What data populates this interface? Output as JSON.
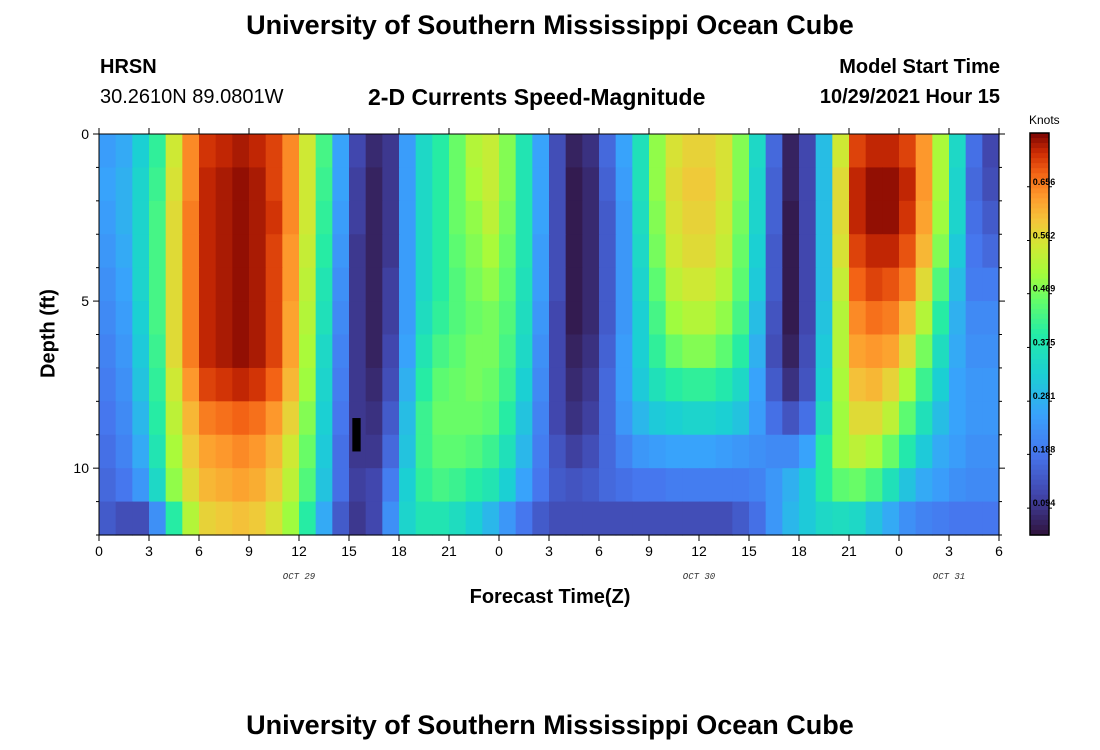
{
  "header": {
    "title": "University of Southern Mississippi Ocean Cube",
    "station": "HRSN",
    "coords": "30.2610N  89.0801W",
    "subtitle": "2-D Currents Speed-Magnitude",
    "model_label": "Model Start Time",
    "model_time": "10/29/2021 Hour 15"
  },
  "footer": {
    "title": "University of Southern Mississippi Ocean Cube"
  },
  "chart_data": {
    "type": "heatmap",
    "title": "2-D Currents Speed-Magnitude",
    "xlabel": "Forecast Time(Z)",
    "ylabel": "Depth (ft)",
    "x_start_hour": 0,
    "x_end_hour": 54,
    "x_tick_labels": [
      "0",
      "3",
      "6",
      "9",
      "12",
      "15",
      "18",
      "21",
      "0",
      "3",
      "6",
      "9",
      "12",
      "15",
      "18",
      "21",
      "0",
      "3",
      "6"
    ],
    "x_date_labels": [
      {
        "label": "OCT 29",
        "hour": 12
      },
      {
        "label": "OCT 30",
        "hour": 36
      },
      {
        "label": "OCT 31",
        "hour": 51
      }
    ],
    "ylim": [
      0,
      12
    ],
    "y_ticks": [
      0,
      5,
      10
    ],
    "colorbar": {
      "label": "Knots",
      "min": 0.047,
      "max": 0.75,
      "tick_values": [
        0.094,
        0.188,
        0.281,
        0.375,
        0.469,
        0.562,
        0.656
      ]
    },
    "bad_data_cell": {
      "hour_start": 15.2,
      "hour_end": 15.7,
      "depth_start": 8.5,
      "depth_end": 9.5
    },
    "rows": 12,
    "cols": 54,
    "values": [
      [
        0.25,
        0.27,
        0.33,
        0.41,
        0.55,
        0.65,
        0.71,
        0.72,
        0.73,
        0.72,
        0.7,
        0.65,
        0.55,
        0.43,
        0.26,
        0.12,
        0.08,
        0.1,
        0.25,
        0.35,
        0.4,
        0.46,
        0.52,
        0.54,
        0.48,
        0.38,
        0.26,
        0.13,
        0.07,
        0.09,
        0.17,
        0.26,
        0.37,
        0.49,
        0.56,
        0.58,
        0.58,
        0.56,
        0.48,
        0.35,
        0.17,
        0.07,
        0.12,
        0.3,
        0.55,
        0.7,
        0.72,
        0.72,
        0.7,
        0.64,
        0.51,
        0.35,
        0.18,
        0.12
      ],
      [
        0.26,
        0.28,
        0.34,
        0.42,
        0.56,
        0.65,
        0.72,
        0.73,
        0.74,
        0.73,
        0.7,
        0.65,
        0.55,
        0.42,
        0.26,
        0.11,
        0.07,
        0.1,
        0.25,
        0.35,
        0.4,
        0.46,
        0.51,
        0.54,
        0.48,
        0.38,
        0.26,
        0.13,
        0.06,
        0.08,
        0.16,
        0.25,
        0.37,
        0.49,
        0.57,
        0.59,
        0.59,
        0.56,
        0.48,
        0.34,
        0.16,
        0.07,
        0.12,
        0.3,
        0.57,
        0.72,
        0.74,
        0.74,
        0.72,
        0.64,
        0.51,
        0.34,
        0.17,
        0.13
      ],
      [
        0.25,
        0.28,
        0.34,
        0.43,
        0.57,
        0.66,
        0.72,
        0.73,
        0.74,
        0.73,
        0.71,
        0.65,
        0.55,
        0.41,
        0.25,
        0.11,
        0.07,
        0.1,
        0.25,
        0.35,
        0.4,
        0.46,
        0.49,
        0.53,
        0.47,
        0.38,
        0.26,
        0.13,
        0.06,
        0.08,
        0.15,
        0.24,
        0.36,
        0.48,
        0.56,
        0.58,
        0.58,
        0.55,
        0.47,
        0.34,
        0.16,
        0.06,
        0.12,
        0.3,
        0.57,
        0.72,
        0.74,
        0.74,
        0.71,
        0.63,
        0.5,
        0.34,
        0.18,
        0.15
      ],
      [
        0.24,
        0.27,
        0.34,
        0.43,
        0.57,
        0.66,
        0.72,
        0.73,
        0.74,
        0.73,
        0.7,
        0.64,
        0.54,
        0.4,
        0.24,
        0.1,
        0.07,
        0.1,
        0.25,
        0.35,
        0.4,
        0.45,
        0.48,
        0.51,
        0.46,
        0.38,
        0.25,
        0.13,
        0.06,
        0.08,
        0.15,
        0.24,
        0.35,
        0.47,
        0.55,
        0.57,
        0.57,
        0.54,
        0.46,
        0.33,
        0.15,
        0.06,
        0.12,
        0.3,
        0.56,
        0.7,
        0.72,
        0.72,
        0.69,
        0.61,
        0.48,
        0.32,
        0.19,
        0.17
      ],
      [
        0.23,
        0.26,
        0.34,
        0.43,
        0.57,
        0.66,
        0.72,
        0.73,
        0.74,
        0.73,
        0.7,
        0.64,
        0.53,
        0.38,
        0.23,
        0.1,
        0.07,
        0.11,
        0.25,
        0.35,
        0.4,
        0.44,
        0.47,
        0.49,
        0.45,
        0.37,
        0.25,
        0.13,
        0.06,
        0.08,
        0.15,
        0.24,
        0.34,
        0.45,
        0.53,
        0.55,
        0.55,
        0.52,
        0.45,
        0.32,
        0.15,
        0.06,
        0.12,
        0.3,
        0.54,
        0.68,
        0.7,
        0.69,
        0.66,
        0.57,
        0.44,
        0.3,
        0.2,
        0.2
      ],
      [
        0.22,
        0.25,
        0.33,
        0.43,
        0.57,
        0.66,
        0.72,
        0.73,
        0.74,
        0.73,
        0.7,
        0.63,
        0.52,
        0.37,
        0.22,
        0.1,
        0.07,
        0.11,
        0.25,
        0.36,
        0.41,
        0.44,
        0.46,
        0.47,
        0.44,
        0.36,
        0.24,
        0.12,
        0.06,
        0.08,
        0.15,
        0.24,
        0.33,
        0.43,
        0.5,
        0.52,
        0.52,
        0.49,
        0.43,
        0.3,
        0.14,
        0.06,
        0.12,
        0.31,
        0.52,
        0.65,
        0.67,
        0.66,
        0.61,
        0.52,
        0.4,
        0.28,
        0.22,
        0.22
      ],
      [
        0.21,
        0.24,
        0.32,
        0.42,
        0.57,
        0.66,
        0.72,
        0.73,
        0.74,
        0.73,
        0.7,
        0.63,
        0.51,
        0.35,
        0.21,
        0.1,
        0.07,
        0.12,
        0.26,
        0.38,
        0.43,
        0.45,
        0.47,
        0.47,
        0.43,
        0.35,
        0.23,
        0.12,
        0.07,
        0.09,
        0.16,
        0.25,
        0.33,
        0.41,
        0.46,
        0.48,
        0.48,
        0.45,
        0.4,
        0.28,
        0.13,
        0.07,
        0.13,
        0.32,
        0.52,
        0.63,
        0.64,
        0.63,
        0.57,
        0.47,
        0.36,
        0.27,
        0.23,
        0.23
      ],
      [
        0.2,
        0.23,
        0.31,
        0.41,
        0.55,
        0.64,
        0.7,
        0.71,
        0.72,
        0.71,
        0.68,
        0.61,
        0.5,
        0.34,
        0.2,
        0.1,
        0.08,
        0.13,
        0.28,
        0.4,
        0.45,
        0.46,
        0.47,
        0.46,
        0.42,
        0.33,
        0.22,
        0.12,
        0.08,
        0.1,
        0.17,
        0.25,
        0.32,
        0.37,
        0.4,
        0.41,
        0.41,
        0.39,
        0.35,
        0.26,
        0.15,
        0.09,
        0.14,
        0.33,
        0.51,
        0.6,
        0.61,
        0.58,
        0.51,
        0.42,
        0.33,
        0.26,
        0.24,
        0.24
      ],
      [
        0.19,
        0.22,
        0.29,
        0.4,
        0.53,
        0.61,
        0.66,
        0.67,
        0.68,
        0.67,
        0.64,
        0.58,
        0.48,
        0.33,
        0.19,
        0.1,
        0.09,
        0.15,
        0.3,
        0.42,
        0.46,
        0.46,
        0.46,
        0.45,
        0.4,
        0.31,
        0.21,
        0.12,
        0.09,
        0.11,
        0.17,
        0.24,
        0.29,
        0.32,
        0.33,
        0.34,
        0.34,
        0.33,
        0.31,
        0.25,
        0.18,
        0.14,
        0.18,
        0.36,
        0.5,
        0.57,
        0.57,
        0.53,
        0.45,
        0.37,
        0.3,
        0.26,
        0.24,
        0.24
      ],
      [
        0.18,
        0.21,
        0.27,
        0.38,
        0.51,
        0.59,
        0.63,
        0.64,
        0.65,
        0.64,
        0.61,
        0.55,
        0.46,
        0.32,
        0.18,
        0.1,
        0.1,
        0.17,
        0.31,
        0.42,
        0.45,
        0.45,
        0.44,
        0.42,
        0.37,
        0.29,
        0.2,
        0.14,
        0.11,
        0.13,
        0.17,
        0.21,
        0.24,
        0.25,
        0.26,
        0.26,
        0.26,
        0.25,
        0.24,
        0.23,
        0.22,
        0.22,
        0.26,
        0.4,
        0.5,
        0.53,
        0.51,
        0.46,
        0.39,
        0.32,
        0.27,
        0.25,
        0.23,
        0.23
      ],
      [
        0.17,
        0.19,
        0.24,
        0.35,
        0.49,
        0.57,
        0.61,
        0.62,
        0.63,
        0.62,
        0.59,
        0.53,
        0.44,
        0.31,
        0.18,
        0.11,
        0.12,
        0.2,
        0.33,
        0.41,
        0.43,
        0.42,
        0.4,
        0.38,
        0.33,
        0.26,
        0.19,
        0.15,
        0.14,
        0.15,
        0.17,
        0.18,
        0.19,
        0.19,
        0.2,
        0.2,
        0.2,
        0.2,
        0.2,
        0.21,
        0.24,
        0.28,
        0.32,
        0.4,
        0.45,
        0.46,
        0.43,
        0.37,
        0.31,
        0.27,
        0.25,
        0.23,
        0.22,
        0.22
      ],
      [
        0.15,
        0.13,
        0.13,
        0.23,
        0.4,
        0.52,
        0.58,
        0.59,
        0.6,
        0.59,
        0.56,
        0.5,
        0.4,
        0.27,
        0.15,
        0.1,
        0.12,
        0.23,
        0.34,
        0.38,
        0.38,
        0.36,
        0.33,
        0.29,
        0.24,
        0.19,
        0.15,
        0.13,
        0.13,
        0.13,
        0.13,
        0.13,
        0.13,
        0.13,
        0.13,
        0.13,
        0.13,
        0.13,
        0.15,
        0.18,
        0.24,
        0.29,
        0.32,
        0.35,
        0.36,
        0.35,
        0.31,
        0.27,
        0.23,
        0.21,
        0.2,
        0.19,
        0.19,
        0.19
      ]
    ]
  }
}
